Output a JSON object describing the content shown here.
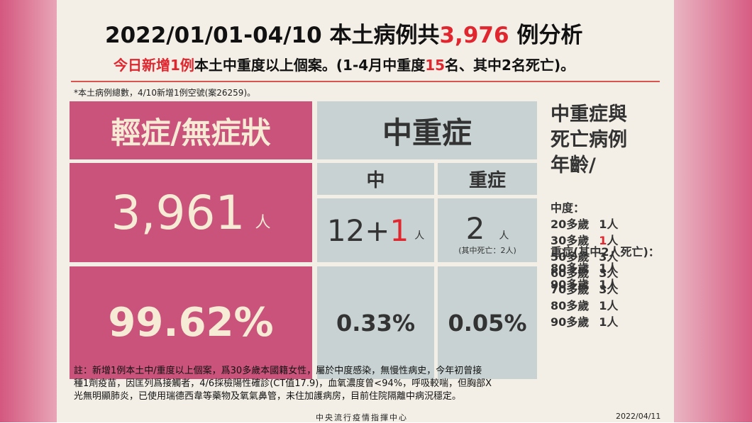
{
  "header": {
    "title": [
      "2022/01/01-04/10 本土病例共",
      "3,976",
      " 例分析"
    ],
    "subtitle": [
      "今日新增1例",
      "本土中重度以上個案。(1-4月中重度",
      "15",
      "名、其中2名死亡)。"
    ],
    "note": "*本土病例總數，4/10新增1例空號(案26259)。"
  },
  "mild": {
    "header": "輕症/無症狀",
    "count": "3,961",
    "unit": "人",
    "percent": "99.62%"
  },
  "severe": {
    "header": "中重症",
    "moderate": {
      "label": "中",
      "count": [
        "12+",
        "1"
      ],
      "unit": "人",
      "percent": "0.33%"
    },
    "critical": {
      "label": "重症",
      "count": "2",
      "unit": "人",
      "detail": "(其中死亡：2人)",
      "percent": "0.05%"
    }
  },
  "ages": {
    "title": [
      "中重症與",
      "死亡病例",
      "年齡/"
    ],
    "moderate_label": "中度：",
    "moderate": [
      {
        "age": "20多歲",
        "count": "1",
        "unit": "人"
      },
      {
        "age": "30多歲",
        "count": "1",
        "unit": "人"
      },
      {
        "age": "50多歲",
        "count": "3",
        "unit": "人"
      },
      {
        "age": "60多歲",
        "count": "3",
        "unit": "人"
      },
      {
        "age": "70多歲",
        "count": "3",
        "unit": "人"
      },
      {
        "age": "80多歲",
        "count": "1",
        "unit": "人"
      },
      {
        "age": "90多歲",
        "count": "1",
        "unit": "人"
      }
    ],
    "critical_label": "重症(其中2人死亡)：",
    "critical": [
      {
        "age": "80多歲",
        "count": "1",
        "unit": "人"
      },
      {
        "age": "90多歲",
        "count": "1",
        "unit": "人"
      }
    ]
  },
  "footnote": [
    "註：新增1例本土中/重度以上個案，爲30多歲本國籍女性，屬於中度感染，無慢性病史，今年初曾接",
    "種1劑疫苗，因匡列爲接觸者，4/6採檢陽性確診(CT值17.9)，血氧濃度曾<94%，呼吸較喘，但胸部X",
    "光無明顯肺炎，已使用瑞德西韋等藥物及氧氣鼻管，未住加護病房，目前住院隔離中病況穩定。"
  ],
  "footer": {
    "source": "中央流行疫情指揮中心",
    "date": "2022/04/11"
  }
}
